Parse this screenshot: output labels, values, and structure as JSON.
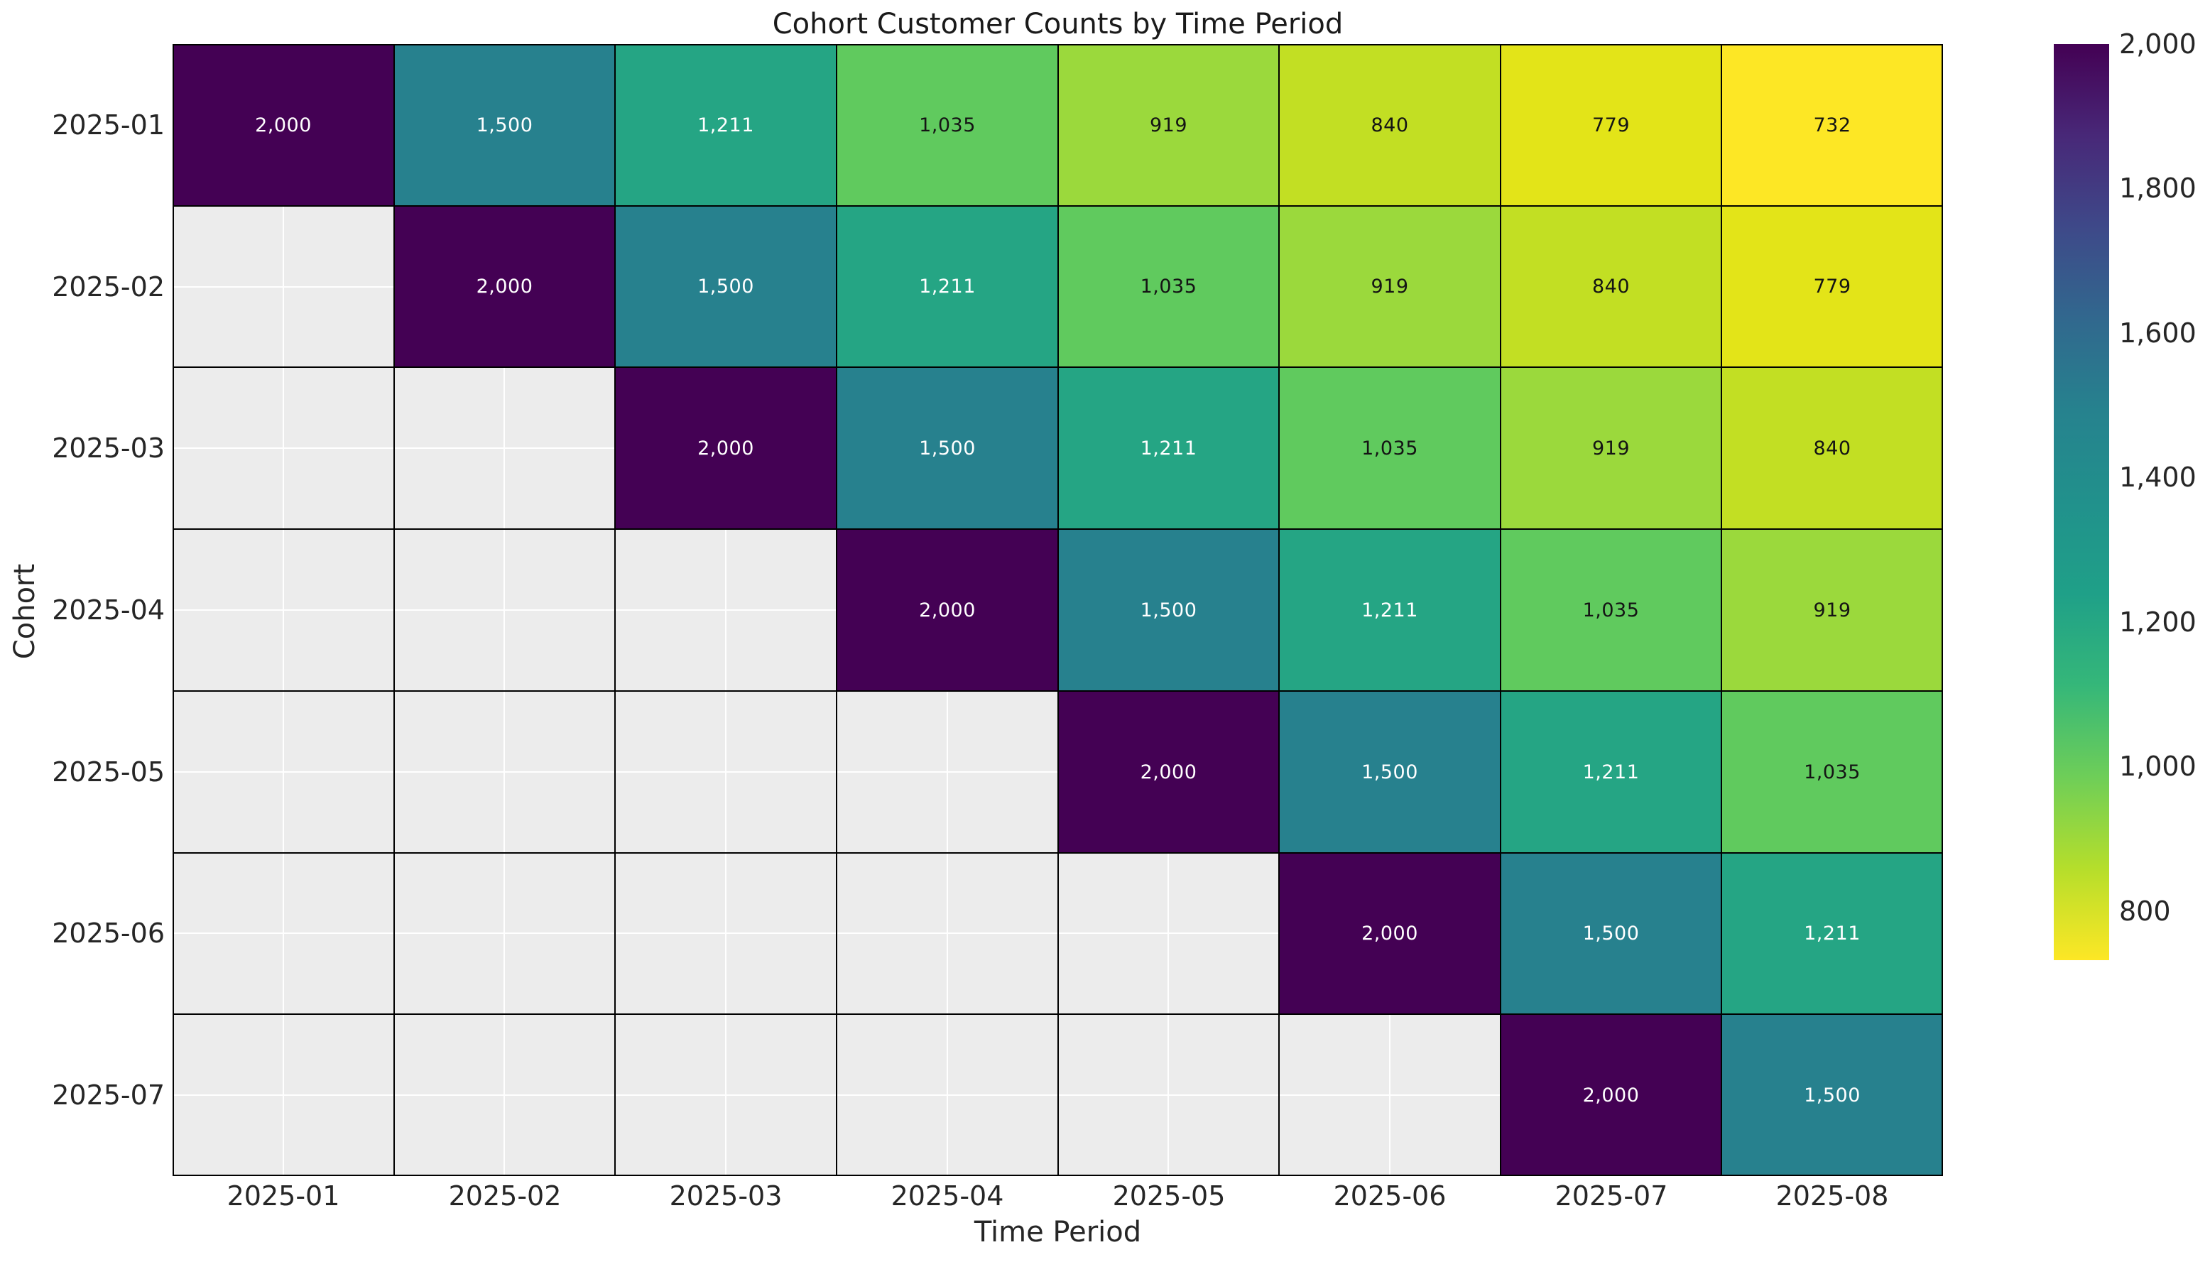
{
  "chart_data": {
    "type": "heatmap",
    "title": "Cohort Customer Counts by Time Period",
    "xlabel": "Time Period",
    "ylabel": "Cohort",
    "x_categories": [
      "2025-01",
      "2025-02",
      "2025-03",
      "2025-04",
      "2025-05",
      "2025-06",
      "2025-07",
      "2025-08"
    ],
    "y_categories": [
      "2025-01",
      "2025-02",
      "2025-03",
      "2025-04",
      "2025-05",
      "2025-06",
      "2025-07"
    ],
    "values": [
      [
        2000,
        1500,
        1211,
        1035,
        919,
        840,
        779,
        732
      ],
      [
        null,
        2000,
        1500,
        1211,
        1035,
        919,
        840,
        779
      ],
      [
        null,
        null,
        2000,
        1500,
        1211,
        1035,
        919,
        840
      ],
      [
        null,
        null,
        null,
        2000,
        1500,
        1211,
        1035,
        919
      ],
      [
        null,
        null,
        null,
        null,
        2000,
        1500,
        1211,
        1035
      ],
      [
        null,
        null,
        null,
        null,
        null,
        2000,
        1500,
        1211
      ],
      [
        null,
        null,
        null,
        null,
        null,
        null,
        2000,
        1500
      ]
    ],
    "value_labels": [
      [
        "2,000",
        "1,500",
        "1,211",
        "1,035",
        "919",
        "840",
        "779",
        "732"
      ],
      [
        null,
        "2,000",
        "1,500",
        "1,211",
        "1,035",
        "919",
        "840",
        "779"
      ],
      [
        null,
        null,
        "2,000",
        "1,500",
        "1,211",
        "1,035",
        "919",
        "840"
      ],
      [
        null,
        null,
        null,
        "2,000",
        "1,500",
        "1,211",
        "1,035",
        "919"
      ],
      [
        null,
        null,
        null,
        null,
        "2,000",
        "1,500",
        "1,211",
        "1,035"
      ],
      [
        null,
        null,
        null,
        null,
        null,
        "2,000",
        "1,500",
        "1,211"
      ],
      [
        null,
        null,
        null,
        null,
        null,
        null,
        "2,000",
        "1,500"
      ]
    ],
    "colormap": "viridis_r",
    "vmin": 732,
    "vmax": 2000,
    "value_colors": {
      "2000": "#440154",
      "1500": "#27818e",
      "1211": "#25a584",
      "1035": "#60ca5e",
      "919": "#9bd93c",
      "840": "#c2df23",
      "779": "#e3e418",
      "732": "#fde725"
    },
    "annotation_text_light": "#ffffff",
    "annotation_text_dark": "#141414",
    "light_text_threshold": 1100,
    "empty_cell_color": "#ececec",
    "grid_color": "#000000",
    "minor_grid_color": "#ffffff",
    "background_color": "#ffffff",
    "legend_position": "right-colorbar",
    "colorbar": {
      "tick_labels": [
        "2,000",
        "1,800",
        "1,600",
        "1,400",
        "1,200",
        "1,000",
        "800"
      ],
      "tick_values": [
        2000,
        1800,
        1600,
        1400,
        1200,
        1000,
        800
      ],
      "gradient_stops_top_to_bottom": [
        "#440154",
        "#482878",
        "#3e4989",
        "#31688e",
        "#26828e",
        "#21918c",
        "#1fa088",
        "#35b779",
        "#6ece58",
        "#b5de2b",
        "#fde725"
      ]
    }
  }
}
